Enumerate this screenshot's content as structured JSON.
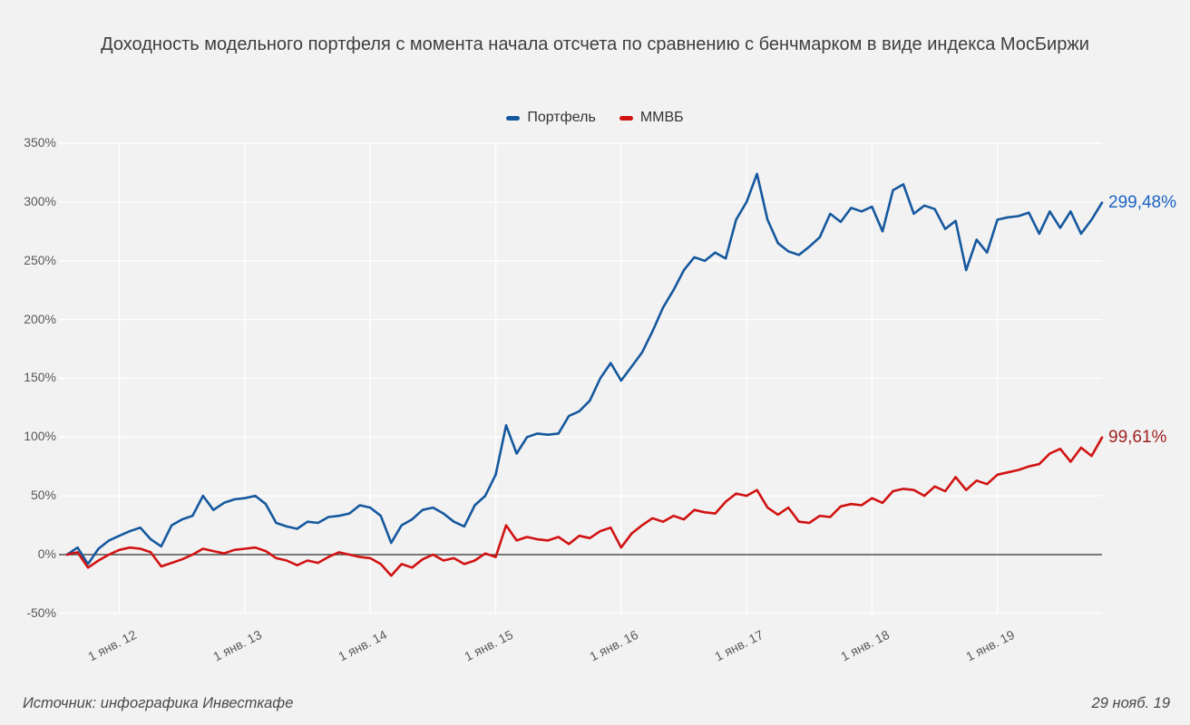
{
  "title": "Доходность модельного портфеля с момента начала отсчета по сравнению с бенчмарком в виде индекса МосБиржи",
  "footer": {
    "source": "Источник: инфографика Инвесткафе",
    "date": "29 нояб. 19"
  },
  "colors": {
    "background": "#f2f2f2",
    "gridline": "#ffffff",
    "zero_line": "#4f4f4f",
    "axis_text": "#595959",
    "title_text": "#3e3e3e"
  },
  "chart_data": {
    "type": "line",
    "title": "Доходность модельного портфеля с момента начала отсчета по сравнению с бенчмарком в виде индекса МосБиржи",
    "xlabel": "",
    "ylabel": "",
    "ylim": [
      -50,
      350
    ],
    "ytick_step": 50,
    "ytick_suffix": "%",
    "grid": true,
    "zero_line": true,
    "legend_position": "top-center",
    "x_tick_labels": [
      "1 янв. 12",
      "1 янв. 13",
      "1 янв. 14",
      "1 янв. 15",
      "1 янв. 16",
      "1 янв. 17",
      "1 янв. 18",
      "1 янв. 19"
    ],
    "x_sampling": "monthly from Aug 2011 to 29 Nov 2019",
    "series": [
      {
        "name": "Портфель",
        "color": "#15589e",
        "end_label": "299,48%",
        "end_label_color": "#1d64c4",
        "end_value": 299.48,
        "values": [
          0,
          6,
          -8,
          5,
          12,
          16,
          20,
          23,
          13,
          7,
          25,
          30,
          33,
          50,
          38,
          44,
          47,
          48,
          50,
          43,
          27,
          24,
          22,
          28,
          27,
          32,
          33,
          35,
          42,
          40,
          33,
          10,
          25,
          30,
          38,
          40,
          35,
          28,
          24,
          42,
          50,
          68,
          110,
          86,
          100,
          103,
          102,
          103,
          118,
          122,
          131,
          150,
          163,
          148,
          160,
          172,
          190,
          210,
          225,
          242,
          253,
          250,
          257,
          252,
          285,
          300,
          324,
          285,
          265,
          258,
          255,
          262,
          270,
          290,
          283,
          295,
          292,
          296,
          275,
          310,
          315,
          290,
          297,
          294,
          277,
          284,
          242,
          268,
          257,
          285,
          287,
          288,
          291,
          273,
          292,
          278,
          292,
          273,
          285,
          299.48
        ]
      },
      {
        "name": "ММВБ",
        "color": "#d11212",
        "end_label": "99,61%",
        "end_label_color": "#9e1f1f",
        "end_value": 99.61,
        "values": [
          0,
          2,
          -11,
          -5,
          0,
          4,
          6,
          5,
          2,
          -10,
          -7,
          -4,
          0,
          5,
          3,
          1,
          4,
          5,
          6,
          3,
          -3,
          -5,
          -9,
          -5,
          -7,
          -2,
          2,
          0,
          -2,
          -3,
          -8,
          -18,
          -8,
          -11,
          -4,
          0,
          -5,
          -3,
          -8,
          -5,
          1,
          -2,
          25,
          12,
          15,
          13,
          12,
          15,
          9,
          16,
          14,
          20,
          23,
          6,
          18,
          25,
          31,
          28,
          33,
          30,
          38,
          36,
          35,
          45,
          52,
          50,
          55,
          40,
          34,
          40,
          28,
          27,
          33,
          32,
          41,
          43,
          42,
          48,
          44,
          54,
          56,
          55,
          50,
          58,
          54,
          66,
          55,
          63,
          60,
          68,
          70,
          72,
          75,
          77,
          86,
          90,
          79,
          91,
          84,
          99.61
        ]
      }
    ]
  }
}
